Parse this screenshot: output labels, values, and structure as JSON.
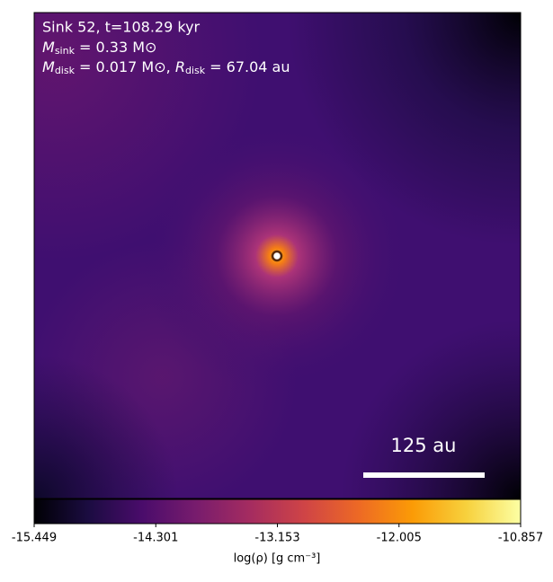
{
  "chart_data": {
    "type": "image",
    "annotations": [
      {
        "text": "Sink 52, t=108.29 kyr"
      },
      {
        "symbol": "M",
        "subscript": "sink",
        "text": " = 0.33 M⊙"
      },
      {
        "symbol": "M",
        "subscript": "disk",
        "text": " = 0.017 M⊙, ",
        "symbol2": "R",
        "subscript2": "disk",
        "text2": " = 67.04 au"
      }
    ],
    "scale_bar": {
      "label": "125 au"
    },
    "colormap": "inferno",
    "colorbar": {
      "label": "log(ρ) [g cm⁻³]",
      "xlim": [
        -15.449,
        -10.857
      ],
      "xticks": [
        -15.449,
        -14.301,
        -13.153,
        -12.005,
        -10.857
      ]
    }
  }
}
